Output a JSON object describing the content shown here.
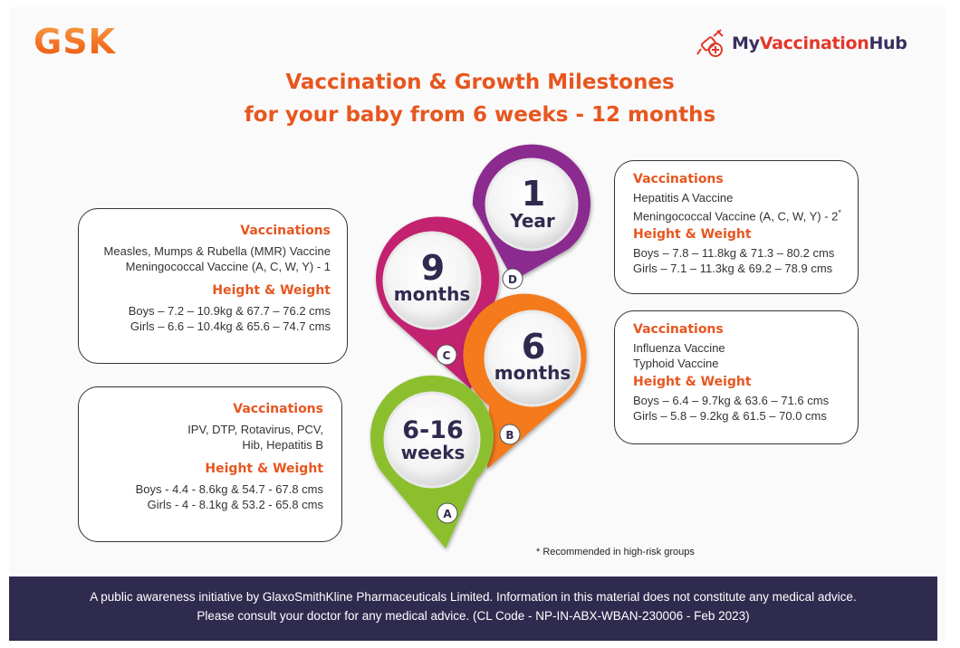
{
  "brand": {
    "gsk_logo": "GSK",
    "hub_my": "My",
    "hub_vaccination": "Vaccination",
    "hub_hub": "Hub",
    "hub_icon": "vaccine-syringe-icon"
  },
  "title": {
    "line1": "Vaccination & Growth Milestones",
    "line2": "for your baby from 6 weeks - 12 months"
  },
  "colors": {
    "accent": "#e7561f",
    "footer": "#2f2b4f",
    "pin_a": "#8cbf2f",
    "pin_b": "#f47a1f",
    "pin_c": "#c2226f",
    "pin_d": "#8b2a8f"
  },
  "pins": [
    {
      "letter": "A",
      "big": "6-16",
      "small": "weeks"
    },
    {
      "letter": "B",
      "big": "6",
      "small": "months"
    },
    {
      "letter": "C",
      "big": "9",
      "small": "months"
    },
    {
      "letter": "D",
      "big": "1",
      "small": "Year"
    }
  ],
  "cards": {
    "nine_months": {
      "vacc_heading": "Vaccinations",
      "vacc": [
        "Measles, Mumps & Rubella (MMR) Vaccine",
        "Meningococcal Vaccine (A, C, W, Y) - 1"
      ],
      "hw_heading": "Height & Weight",
      "hw": [
        "Boys – 7.2 – 10.9kg & 67.7 – 76.2 cms",
        "Girls – 6.6 – 10.4kg & 65.6 – 74.7 cms"
      ]
    },
    "weeks_6_16": {
      "vacc_heading": "Vaccinations",
      "vacc": [
        "IPV, DTP, Rotavirus, PCV,",
        "Hib, Hepatitis B"
      ],
      "hw_heading": "Height & Weight",
      "hw": [
        "Boys - 4.4 - 8.6kg & 54.7 - 67.8 cms",
        "Girls - 4 - 8.1kg & 53.2 - 65.8 cms"
      ]
    },
    "one_year": {
      "vacc_heading": "Vaccinations",
      "vacc": [
        "Hepatitis A Vaccine",
        "Meningococcal Vaccine (A, C, W, Y) - 2"
      ],
      "asterisk": "*",
      "hw_heading": "Height & Weight",
      "hw": [
        "Boys – 7.8 – 11.8kg & 71.3 – 80.2 cms",
        "Girls – 7.1 – 11.3kg & 69.2 – 78.9 cms"
      ]
    },
    "six_months": {
      "vacc_heading": "Vaccinations",
      "vacc": [
        "Influenza Vaccine",
        "Typhoid Vaccine"
      ],
      "hw_heading": "Height & Weight",
      "hw": [
        "Boys – 6.4 – 9.7kg & 63.6 – 71.6 cms",
        "Girls – 5.8 – 9.2kg & 61.5 – 70.0 cms"
      ]
    }
  },
  "note": "* Recommended in high-risk groups",
  "footer": {
    "line1": "A public awareness initiative by GlaxoSmithKline Pharmaceuticals Limited. Information in this material does not constitute any medical advice.",
    "line2": "Please consult your doctor for any medical advice. (CL Code - NP-IN-ABX-WBAN-230006 - Feb 2023)"
  }
}
